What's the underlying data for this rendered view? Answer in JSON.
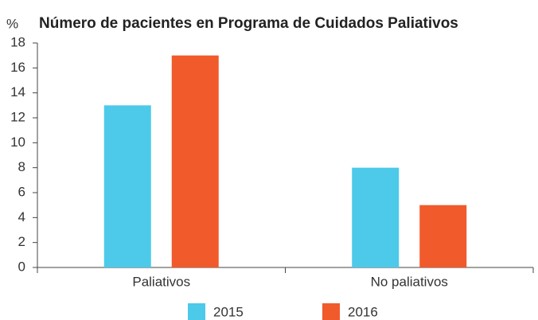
{
  "chart_data": {
    "type": "bar",
    "title": "Número de pacientes en Programa de Cuidados Paliativos",
    "ylabel": "%",
    "categories": [
      "Paliativos",
      "No paliativos"
    ],
    "series": [
      {
        "name": "2015",
        "color": "#4dc9ea",
        "values": [
          13,
          8
        ]
      },
      {
        "name": "2016",
        "color": "#f15a2b",
        "values": [
          17,
          5
        ]
      }
    ],
    "ylim": [
      0,
      18
    ],
    "yticks": [
      0,
      2,
      4,
      6,
      8,
      10,
      12,
      14,
      16,
      18
    ],
    "grid": false
  }
}
